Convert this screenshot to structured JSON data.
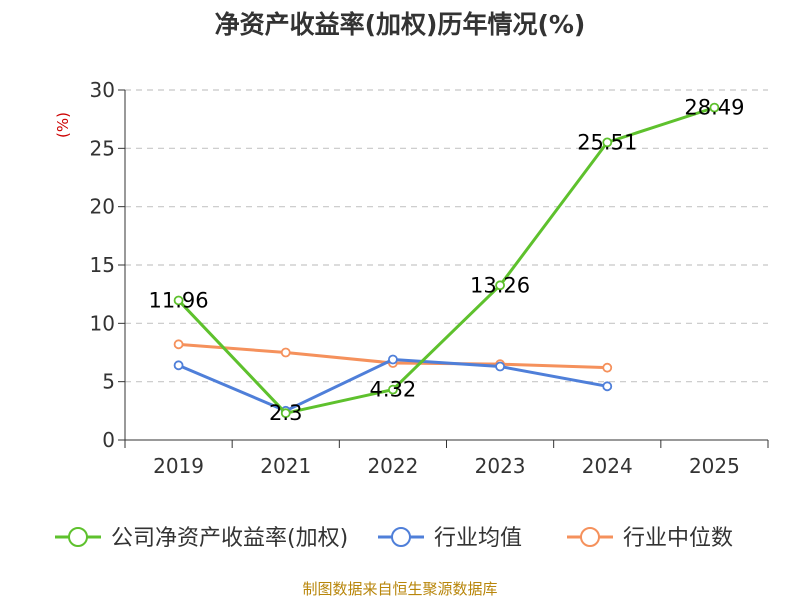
{
  "chart_data": {
    "type": "line",
    "title": "净资产收益率(加权)历年情况(%)",
    "ylabel": "(%)",
    "categories": [
      "2019",
      "2021",
      "2022",
      "2023",
      "2024",
      "2025"
    ],
    "ylim": [
      0,
      30
    ],
    "yticks": [
      "0",
      "5",
      "10",
      "15",
      "20",
      "25",
      "30"
    ],
    "grid": true,
    "legend_position": "bottom",
    "series": [
      {
        "name": "公司净资产收益率(加权)",
        "color": "#5ec12d",
        "values": [
          11.96,
          2.3,
          4.32,
          13.26,
          25.51,
          28.49
        ],
        "labels": [
          "11.96",
          "2.3",
          "4.32",
          "13.26",
          "25.51",
          "28.49"
        ]
      },
      {
        "name": "行业均值",
        "color": "#4f7fd9",
        "values": [
          6.4,
          2.5,
          6.9,
          6.3,
          4.6,
          null
        ]
      },
      {
        "name": "行业中位数",
        "color": "#f5915c",
        "values": [
          8.2,
          7.5,
          6.6,
          6.5,
          6.2,
          null
        ]
      }
    ],
    "source": "制图数据来自恒生聚源数据库"
  }
}
